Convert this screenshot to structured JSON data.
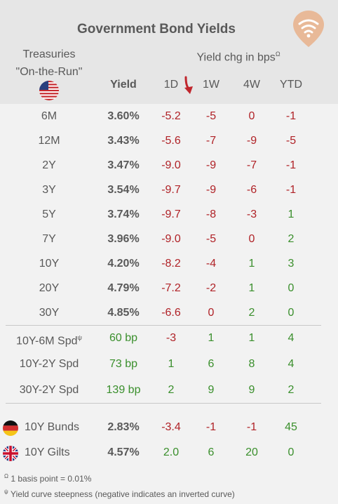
{
  "title": "Government Bond Yields",
  "header": {
    "treasuries_line1": "Treasuries",
    "treasuries_line2": "\"On-the-Run\"",
    "yield_chg": "Yield chg in bps",
    "yield_chg_sup": "Ω",
    "col_yield": "Yield",
    "col_1d": "1D",
    "col_1w": "1W",
    "col_4w": "4W",
    "col_ytd": "YTD"
  },
  "treasuries": [
    {
      "label": "6M",
      "yield": "3.60%",
      "d1": "-5.2",
      "w1": "-5",
      "w4": "0",
      "ytd": "-1"
    },
    {
      "label": "12M",
      "yield": "3.43%",
      "d1": "-5.6",
      "w1": "-7",
      "w4": "-9",
      "ytd": "-5"
    },
    {
      "label": "2Y",
      "yield": "3.47%",
      "d1": "-9.0",
      "w1": "-9",
      "w4": "-7",
      "ytd": "-1"
    },
    {
      "label": "3Y",
      "yield": "3.54%",
      "d1": "-9.7",
      "w1": "-9",
      "w4": "-6",
      "ytd": "-1"
    },
    {
      "label": "5Y",
      "yield": "3.74%",
      "d1": "-9.7",
      "w1": "-8",
      "w4": "-3",
      "ytd": "1"
    },
    {
      "label": "7Y",
      "yield": "3.96%",
      "d1": "-9.0",
      "w1": "-5",
      "w4": "0",
      "ytd": "2"
    },
    {
      "label": "10Y",
      "yield": "4.20%",
      "d1": "-8.2",
      "w1": "-4",
      "w4": "1",
      "ytd": "3"
    },
    {
      "label": "20Y",
      "yield": "4.79%",
      "d1": "-7.2",
      "w1": "-2",
      "w4": "1",
      "ytd": "0"
    },
    {
      "label": "30Y",
      "yield": "4.85%",
      "d1": "-6.6",
      "w1": "0",
      "w4": "2",
      "ytd": "0"
    }
  ],
  "spreads": [
    {
      "label": "10Y-6M Spd",
      "sup": "ψ",
      "yield": "60 bp",
      "d1": "-3",
      "w1": "1",
      "w4": "1",
      "ytd": "4"
    },
    {
      "label": "10Y-2Y Spd",
      "sup": "",
      "yield": "73 bp",
      "d1": "1",
      "w1": "6",
      "w4": "8",
      "ytd": "4"
    },
    {
      "label": "30Y-2Y Spd",
      "sup": "",
      "yield": "139 bp",
      "d1": "2",
      "w1": "9",
      "w4": "9",
      "ytd": "2"
    }
  ],
  "international": [
    {
      "label": "10Y Bunds",
      "flag": "germany-flag",
      "yield": "2.83%",
      "d1": "-3.4",
      "w1": "-1",
      "w4": "-1",
      "ytd": "45"
    },
    {
      "label": "10Y Gilts",
      "flag": "uk-flag",
      "yield": "4.57%",
      "d1": "2.0",
      "w1": "6",
      "w4": "20",
      "ytd": "0"
    }
  ],
  "footnotes": [
    {
      "sym": "Ω",
      "text": "1 basis point = 0.01%"
    },
    {
      "sym": "ψ",
      "text": "Yield curve steepness (negative indicates an inverted curve)"
    }
  ],
  "colors": {
    "negative": "#b02227",
    "positive": "#3a8f2c",
    "header_bg": "#e6e6e6",
    "logo": "#e8b998"
  }
}
